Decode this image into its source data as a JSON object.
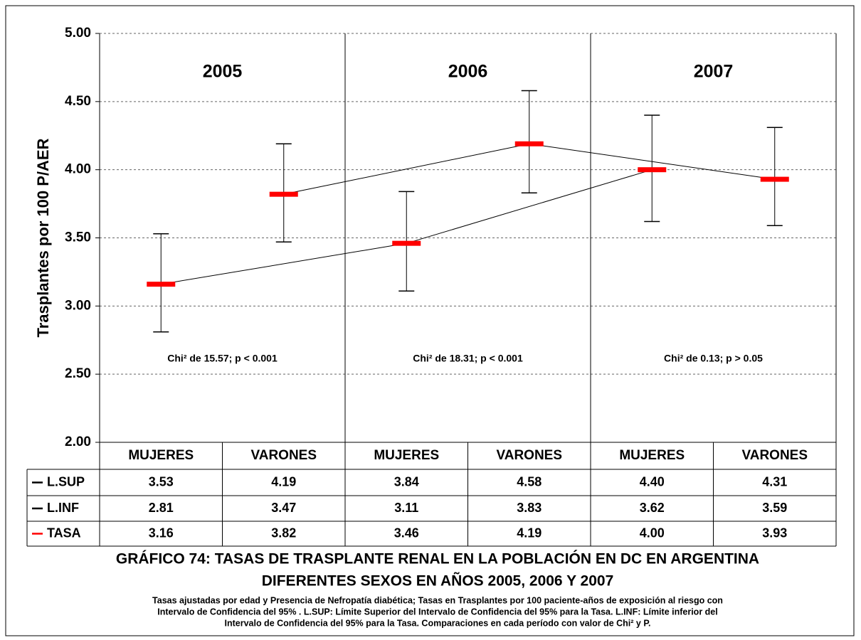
{
  "chart_data": {
    "type": "errorbar",
    "title": [
      "GRÁFICO 74:  TASAS DE TRASPLANTE RENAL  EN  LA POBLACIÓN EN DC EN ARGENTINA",
      "DIFERENTES SEXOS EN AÑOS 2005, 2006 Y 2007"
    ],
    "note": [
      "Tasas ajustadas por edad y Presencia de Nefropatía diabética; Tasas en Trasplantes por 100 paciente-años de exposición al riesgo con",
      "Intervalo de Confidencia del 95% . L.SUP: Límite Superior del Intervalo de Confidencia del 95%  para la Tasa. L.INF: Límite inferior del",
      "Intervalo de Confidencia del 95%  para la Tasa. Comparaciones en cada período con valor de Chi² y P."
    ],
    "y_label": "Trasplantes por 100 P/AER",
    "groups": [
      "2005",
      "2006",
      "2007"
    ],
    "annotations": [
      "Chi² de 15.57; p < 0.001",
      "Chi² de 18.31; p < 0.001",
      "Chi² de 0.13; p > 0.05"
    ],
    "categories": [
      "MUJERES",
      "VARONES",
      "MUJERES",
      "VARONES",
      "MUJERES",
      "VARONES"
    ],
    "series": [
      {
        "name": "L.SUP",
        "color": "#000000",
        "values": [
          3.53,
          4.19,
          3.84,
          4.58,
          4.4,
          4.31
        ],
        "value_labels": [
          "3.53",
          "4.19",
          "3.84",
          "4.58",
          "4.40",
          "4.31"
        ]
      },
      {
        "name": "L.INF",
        "color": "#000000",
        "values": [
          2.81,
          3.47,
          3.11,
          3.83,
          3.62,
          3.59
        ],
        "value_labels": [
          "2.81",
          "3.47",
          "3.11",
          "3.83",
          "3.62",
          "3.59"
        ]
      },
      {
        "name": "TASA",
        "color": "#ff0000",
        "values": [
          3.16,
          3.82,
          3.46,
          4.19,
          4.0,
          3.93
        ],
        "value_labels": [
          "3.16",
          "3.82",
          "3.46",
          "4.19",
          "4.00",
          "3.93"
        ]
      }
    ],
    "ylim": [
      2,
      5
    ],
    "yticks": [
      {
        "value": 2,
        "label": "2.00"
      },
      {
        "value": 2.5,
        "label": "2.50"
      },
      {
        "value": 3,
        "label": "3.00"
      },
      {
        "value": 3.5,
        "label": "3.50"
      },
      {
        "value": 4,
        "label": "4.00"
      },
      {
        "value": 4.5,
        "label": "4.50"
      },
      {
        "value": 5,
        "label": "5.00"
      }
    ],
    "grid": true
  }
}
